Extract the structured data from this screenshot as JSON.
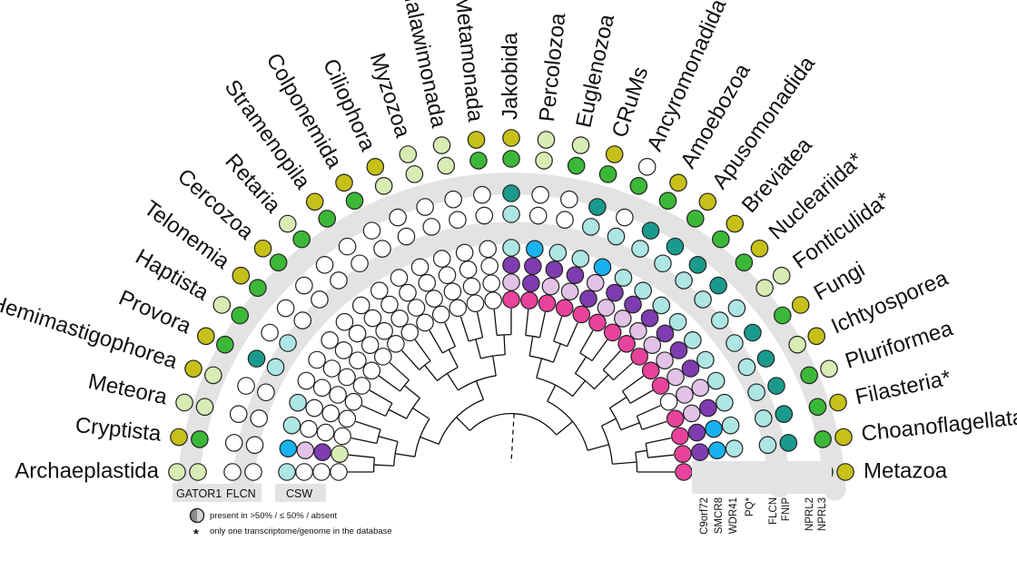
{
  "figure": {
    "taxa": [
      {
        "name": "Archaeplastida",
        "cells": [
          "l",
          "l",
          "w",
          "w",
          "c",
          "w",
          "w",
          "w"
        ]
      },
      {
        "name": "Cryptista",
        "cells": [
          "y",
          "g",
          "w",
          "w",
          "b",
          "p",
          "v",
          "l"
        ]
      },
      {
        "name": "Meteora",
        "cells": [
          "l",
          "l",
          "w",
          "w",
          "c",
          "w",
          "w",
          "w"
        ]
      },
      {
        "name": "Hemimastigophorea",
        "cells": [
          "y",
          "l",
          "w",
          "w",
          "c",
          "w",
          "w",
          "w"
        ]
      },
      {
        "name": "Provora",
        "cells": [
          "y",
          "g",
          "t",
          "c",
          "w",
          "w",
          "w",
          "w"
        ]
      },
      {
        "name": "Haptista",
        "cells": [
          "l",
          "g",
          "w",
          "c",
          "w",
          "w",
          "w",
          "w"
        ]
      },
      {
        "name": "Telonemia",
        "cells": [
          "y",
          "g",
          "w",
          "w",
          "w",
          "w",
          "w",
          "w"
        ]
      },
      {
        "name": "Cercozoa",
        "cells": [
          "y",
          "g",
          "w",
          "w",
          "w",
          "w",
          "w",
          "w"
        ]
      },
      {
        "name": "Retaria",
        "cells": [
          "l",
          "g",
          "w",
          "w",
          "w",
          "w",
          "w",
          "w"
        ]
      },
      {
        "name": "Stramenopila",
        "cells": [
          "y",
          "g",
          "w",
          "w",
          "w",
          "w",
          "w",
          "w"
        ]
      },
      {
        "name": "Colponemida",
        "cells": [
          "y",
          "g",
          "w",
          "w",
          "w",
          "w",
          "w",
          "w"
        ]
      },
      {
        "name": "Ciliophora",
        "cells": [
          "y",
          "l",
          "w",
          "w",
          "w",
          "w",
          "w",
          "w"
        ]
      },
      {
        "name": "Myzozoa",
        "cells": [
          "l",
          "l",
          "w",
          "w",
          "w",
          "w",
          "w",
          "w"
        ]
      },
      {
        "name": "Malawimonada",
        "star": "*",
        "cells": [
          "l",
          "l",
          "w",
          "w",
          "w",
          "w",
          "w",
          "w"
        ]
      },
      {
        "name": "Metamonada",
        "cells": [
          "y",
          "g",
          "w",
          "w",
          "w",
          "w",
          "w",
          "w"
        ]
      },
      {
        "name": "Jakobida",
        "cells": [
          "y",
          "g",
          "t",
          "c",
          "c",
          "v",
          "p",
          "m"
        ]
      },
      {
        "name": "Percolozoa",
        "cells": [
          "l",
          "l",
          "w",
          "w",
          "b",
          "v",
          "v",
          "m"
        ]
      },
      {
        "name": "Euglenozoa",
        "cells": [
          "l",
          "g",
          "w",
          "w",
          "c",
          "v",
          "p",
          "m"
        ]
      },
      {
        "name": "CRuMs",
        "cells": [
          "y",
          "g",
          "t",
          "c",
          "c",
          "v",
          "p",
          "m"
        ]
      },
      {
        "name": "Ancyromonadida",
        "cells": [
          "w",
          "g",
          "w",
          "c",
          "b",
          "p",
          "v",
          "m"
        ]
      },
      {
        "name": "Amoebozoa",
        "cells": [
          "y",
          "g",
          "t",
          "c",
          "c",
          "v",
          "p",
          "m"
        ]
      },
      {
        "name": "Apusomonadida",
        "cells": [
          "y",
          "g",
          "t",
          "c",
          "c",
          "v",
          "p",
          "m"
        ]
      },
      {
        "name": "Breviatea",
        "cells": [
          "y",
          "g",
          "t",
          "c",
          "c",
          "v",
          "p",
          "m"
        ]
      },
      {
        "name": "Nucleariida",
        "star": "*",
        "cells": [
          "y",
          "g",
          "t",
          "c",
          "c",
          "v",
          "p",
          "m"
        ]
      },
      {
        "name": "Fonticulida",
        "star": "*",
        "cells": [
          "l",
          "l",
          "c",
          "c",
          "c",
          "v",
          "p",
          "m"
        ]
      },
      {
        "name": "Fungi",
        "cells": [
          "y",
          "g",
          "t",
          "c",
          "c",
          "v",
          "p",
          "m"
        ]
      },
      {
        "name": "Ichtyosporea",
        "cells": [
          "y",
          "l",
          "t",
          "c",
          "c",
          "p",
          "p",
          "w"
        ]
      },
      {
        "name": "Pluriformea",
        "cells": [
          "l",
          "g",
          "t",
          "c",
          "c",
          "v",
          "p",
          "m"
        ]
      },
      {
        "name": "Filasteria",
        "star": "*",
        "cells": [
          "y",
          "g",
          "t",
          "c",
          "c",
          "b",
          "v",
          "m"
        ]
      },
      {
        "name": "Choanoflagellata",
        "cells": [
          "y",
          "g",
          "t",
          "c",
          "c",
          "b",
          "v",
          "m"
        ]
      },
      {
        "name": "Metazoa",
        "cells": [
          "y",
          "g",
          "t",
          "c",
          "c",
          "b",
          "v",
          "m"
        ]
      }
    ],
    "group_labels": {
      "gator1": "GATOR1",
      "flcn": "FLCN",
      "csw": "CSW"
    },
    "gene_labels": [
      "C9orf72",
      "SMCR8",
      "WDR41",
      "PQ*",
      "FLCN",
      "FNIP",
      "NPRL2",
      "NPRL3"
    ],
    "legend": {
      "presence_text": "present in >50% / ≤ 50% / absent",
      "star_symbol": "*",
      "star_text": "only one transcriptome/genome in the database"
    },
    "colors": {
      "y": "#c6c018",
      "l": "#d8ecb4",
      "g": "#3cb838",
      "t": "#1a9a8c",
      "c": "#aee6e4",
      "b": "#19b2f0",
      "s": "#b4d6f2",
      "d": "#1e5fd2",
      "v": "#7f3cb0",
      "p": "#e2c2e6",
      "m": "#e8439c",
      "k": "#f4b4d2",
      "w": "#ffffff",
      "band": "#e3e3e3",
      "stroke": "#222222"
    }
  }
}
